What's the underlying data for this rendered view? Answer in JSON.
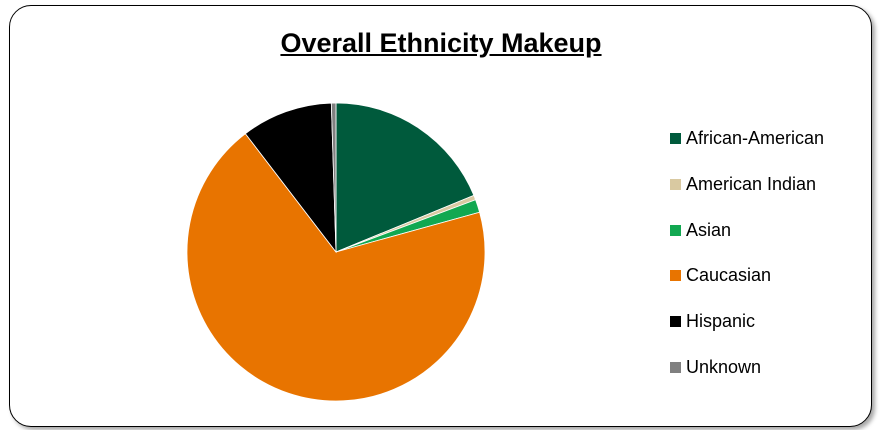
{
  "chart_data": {
    "type": "pie",
    "title": "Overall Ethnicity Makeup",
    "legend_position": "right",
    "categories": [
      "African-American",
      "American Indian",
      "Asian",
      "Caucasian",
      "Hispanic",
      "Unknown"
    ],
    "values": [
      18.8,
      0.5,
      1.4,
      68.9,
      9.9,
      0.5
    ],
    "colors": [
      "#005A3C",
      "#D9C9A1",
      "#12A851",
      "#E87400",
      "#000000",
      "#808080"
    ]
  }
}
